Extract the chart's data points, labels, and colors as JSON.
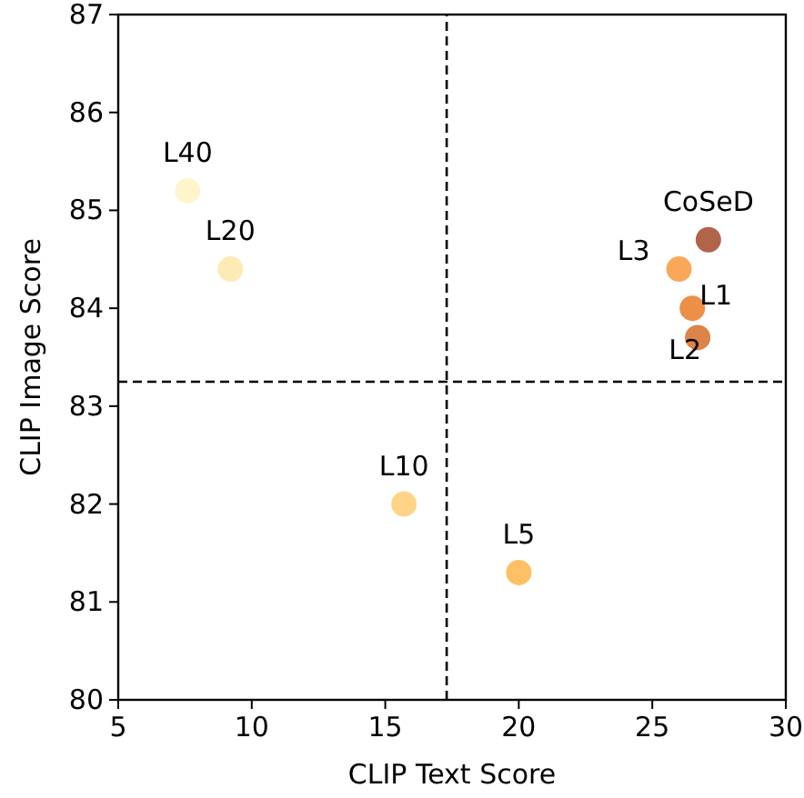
{
  "chart_data": {
    "type": "scatter",
    "xlabel": "CLIP Text Score",
    "ylabel": "CLIP Image Score",
    "xlim": [
      5,
      30
    ],
    "ylim": [
      80,
      87
    ],
    "xticks": [
      5,
      10,
      15,
      20,
      25,
      30
    ],
    "yticks": [
      80,
      81,
      82,
      83,
      84,
      85,
      86,
      87
    ],
    "marker": "circle",
    "series": [
      {
        "name": "L40",
        "color": "#fff5cc",
        "x": [
          7.6
        ],
        "values": [
          85.2
        ]
      },
      {
        "name": "L20",
        "color": "#feeab4",
        "x": [
          9.2
        ],
        "values": [
          84.4
        ]
      },
      {
        "name": "L10",
        "color": "#fed586",
        "x": [
          15.7
        ],
        "values": [
          82.0
        ]
      },
      {
        "name": "L5",
        "color": "#fdc064",
        "x": [
          20.0
        ],
        "values": [
          81.3
        ]
      },
      {
        "name": "L3",
        "color": "#f9a85a",
        "x": [
          26.0
        ],
        "values": [
          84.4
        ]
      },
      {
        "name": "L1",
        "color": "#ec9048",
        "x": [
          26.5
        ],
        "values": [
          84.0
        ]
      },
      {
        "name": "L2",
        "color": "#dc844a",
        "x": [
          26.7
        ],
        "values": [
          83.7
        ]
      },
      {
        "name": "CoSeD",
        "color": "#b0654a",
        "x": [
          27.1
        ],
        "values": [
          84.7
        ]
      }
    ],
    "ref_lines": [
      {
        "axis": "x",
        "value": 17.3,
        "line_style": "dashed"
      },
      {
        "axis": "y",
        "value": 83.25,
        "line_style": "dashed"
      }
    ]
  }
}
